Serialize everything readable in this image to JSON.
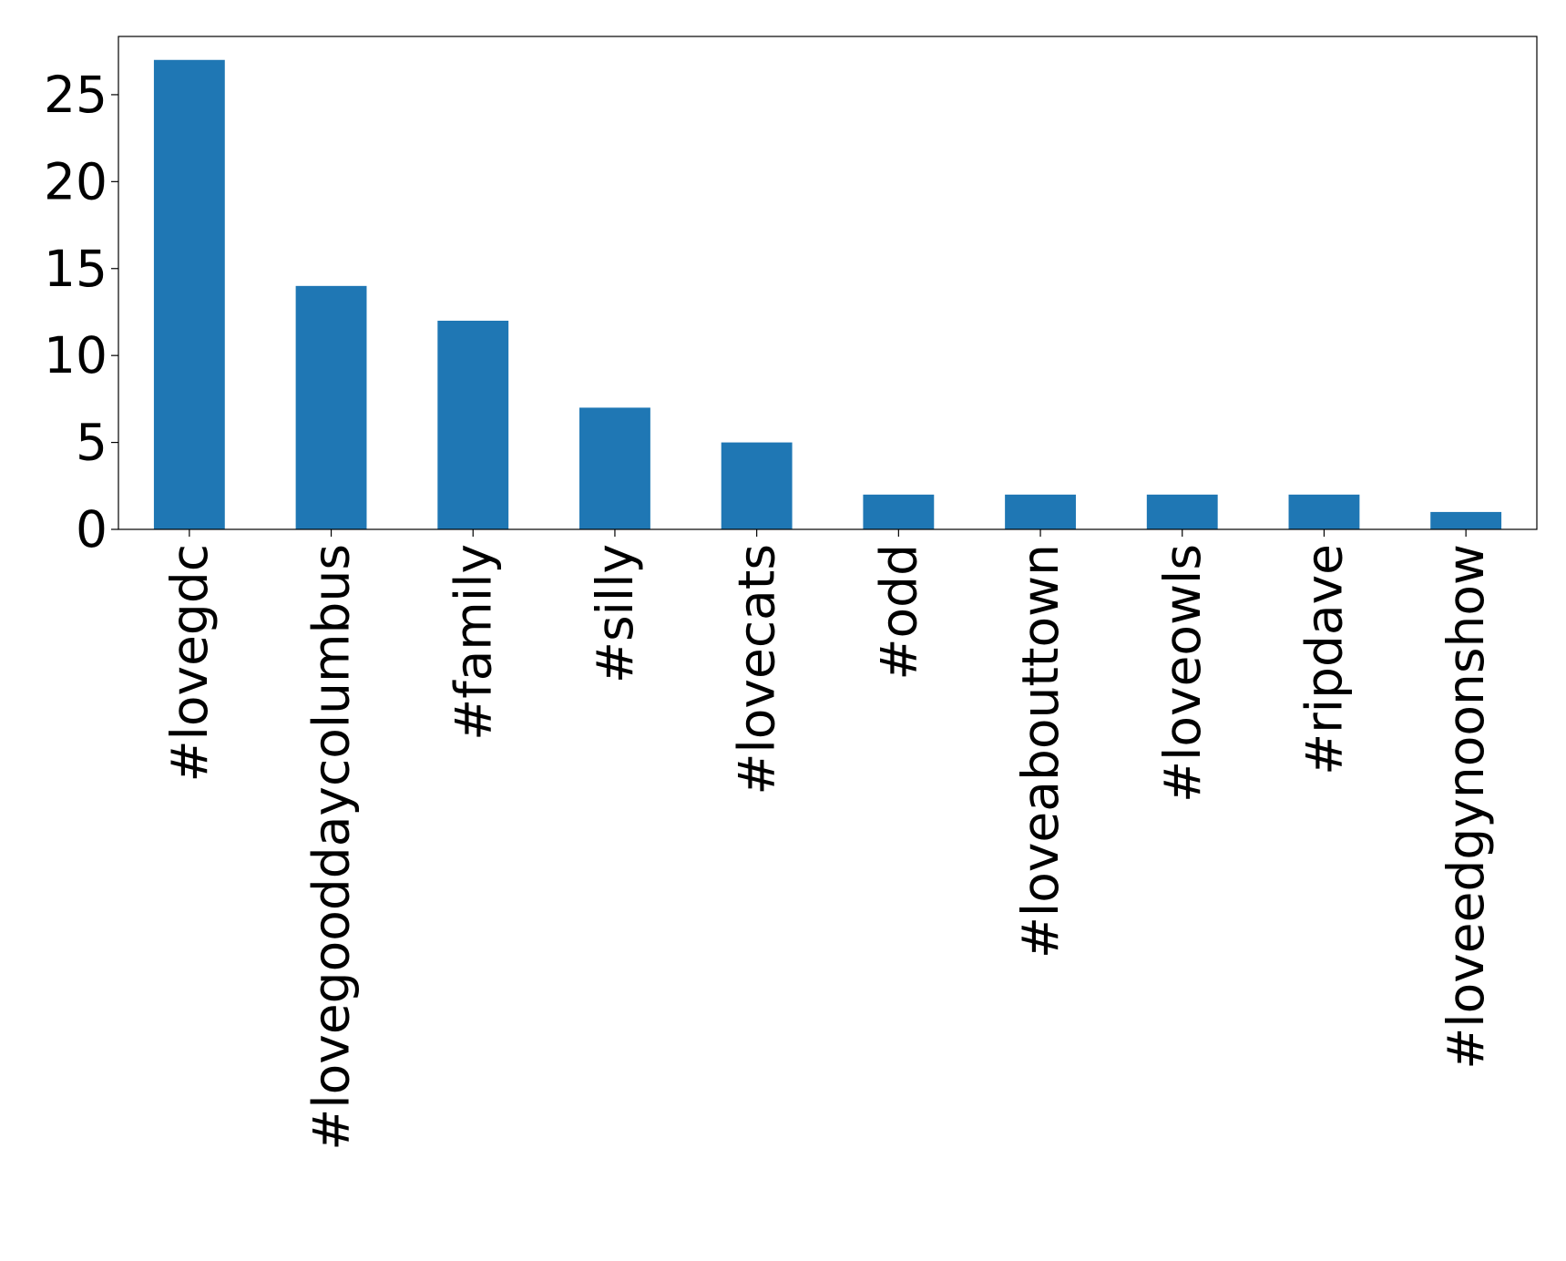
{
  "chart_data": {
    "type": "bar",
    "categories": [
      "#lovegdc",
      "#lovegooddaycolumbus",
      "#family",
      "#silly",
      "#lovecats",
      "#odd",
      "#loveabouttown",
      "#loveowls",
      "#ripdave",
      "#loveedgynoonshow"
    ],
    "values": [
      27,
      14,
      12,
      7,
      5,
      2,
      2,
      2,
      2,
      1
    ],
    "color": "#1f77b4",
    "ylim": [
      0,
      28.35
    ],
    "yticks": [
      0,
      5,
      10,
      15,
      20,
      25
    ],
    "grid": false
  }
}
